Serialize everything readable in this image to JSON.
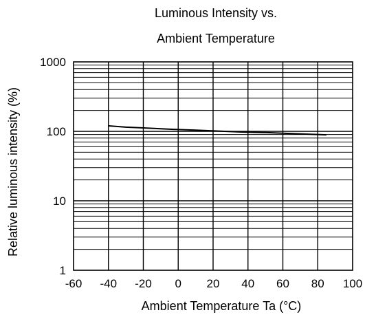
{
  "chart_data": {
    "type": "line",
    "title_lines": [
      "Luminous Intensity vs.",
      "Ambient Temperature"
    ],
    "xlabel": "Ambient Temperature Ta (°C)",
    "ylabel": "Relative luminous intensity  (%)",
    "xlim": [
      -60,
      100
    ],
    "ylim": [
      1,
      1000
    ],
    "yscale": "log",
    "grid": true,
    "x_ticks": [
      -60,
      -40,
      -20,
      0,
      20,
      40,
      60,
      80,
      100
    ],
    "x_tick_labels": [
      "-60",
      "-40",
      "-20",
      "0",
      "20",
      "40",
      "60",
      "80",
      "100"
    ],
    "y_ticks": [
      1,
      10,
      100,
      1000
    ],
    "y_tick_labels": [
      "1",
      "10",
      "100",
      "1000"
    ],
    "series": [
      {
        "x": [
          -40,
          -30,
          -20,
          -10,
          0,
          10,
          35,
          40,
          50,
          60,
          80,
          85
        ],
        "y": [
          120,
          115,
          112,
          109,
          106,
          104,
          98,
          97,
          96,
          94,
          90,
          89
        ]
      }
    ]
  }
}
